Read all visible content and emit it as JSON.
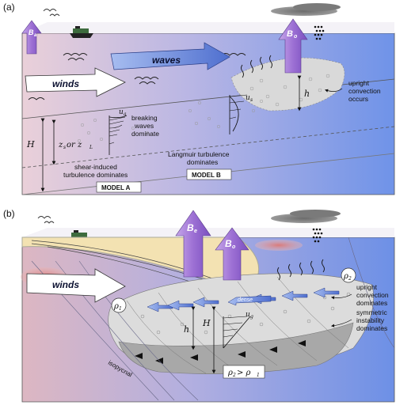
{
  "panel_a": {
    "label": "(a)",
    "flux_small": "B",
    "flux_small_sub": "a",
    "flux_big": "B",
    "flux_big_sub": "o",
    "waves": "waves",
    "winds": "winds",
    "ua_breaking": "u",
    "ua_breaking_sub": "a",
    "ua_langmuir": "u",
    "ua_langmuir_sub": "s",
    "breaking_text": [
      "breaking",
      "waves",
      "dominate"
    ],
    "shear_text": [
      "shear-induced",
      "turbulence dominates"
    ],
    "langmuir_text": [
      "Langmuir turbulence",
      "dominates"
    ],
    "convection_text": [
      "upright",
      "convection",
      "occurs"
    ],
    "h": "h",
    "H": "H",
    "zs_zl": "z",
    "zs_sub": "s",
    "or": " or z",
    "zl_sub": "L",
    "model_a": "MODEL A",
    "model_b": "MODEL B"
  },
  "panel_b": {
    "label": "(b)",
    "flux_e": "B",
    "flux_e_sub": "e",
    "flux_o": "B",
    "flux_o_sub": "o",
    "winds": "winds",
    "dense": "dense",
    "rho2": "ρ",
    "rho2_sub": "2",
    "rho1": "ρ",
    "rho1_sub": "1",
    "upright_text": [
      "upright",
      "convection",
      "dominates"
    ],
    "symmetric_text": [
      "symmetric",
      "instability",
      "dominates"
    ],
    "h": "h",
    "H": "H",
    "ug": "u",
    "ug_sub": "g",
    "isopycnal": "isopycnal",
    "rho_compare": "ρ",
    "rho_compare_a_sub": "2",
    "gt": " > ρ",
    "rho_compare_b_sub": "1"
  },
  "colors": {
    "sky": "#f7f7f9",
    "ocean_left": "#e7c9d3",
    "ocean_right": "#6f92e6",
    "flux_purple": "#a77fd6",
    "wave_arrow": "#6b89d8",
    "front": "#f3e3b4",
    "mixed_layer": "#dcdcdc"
  }
}
